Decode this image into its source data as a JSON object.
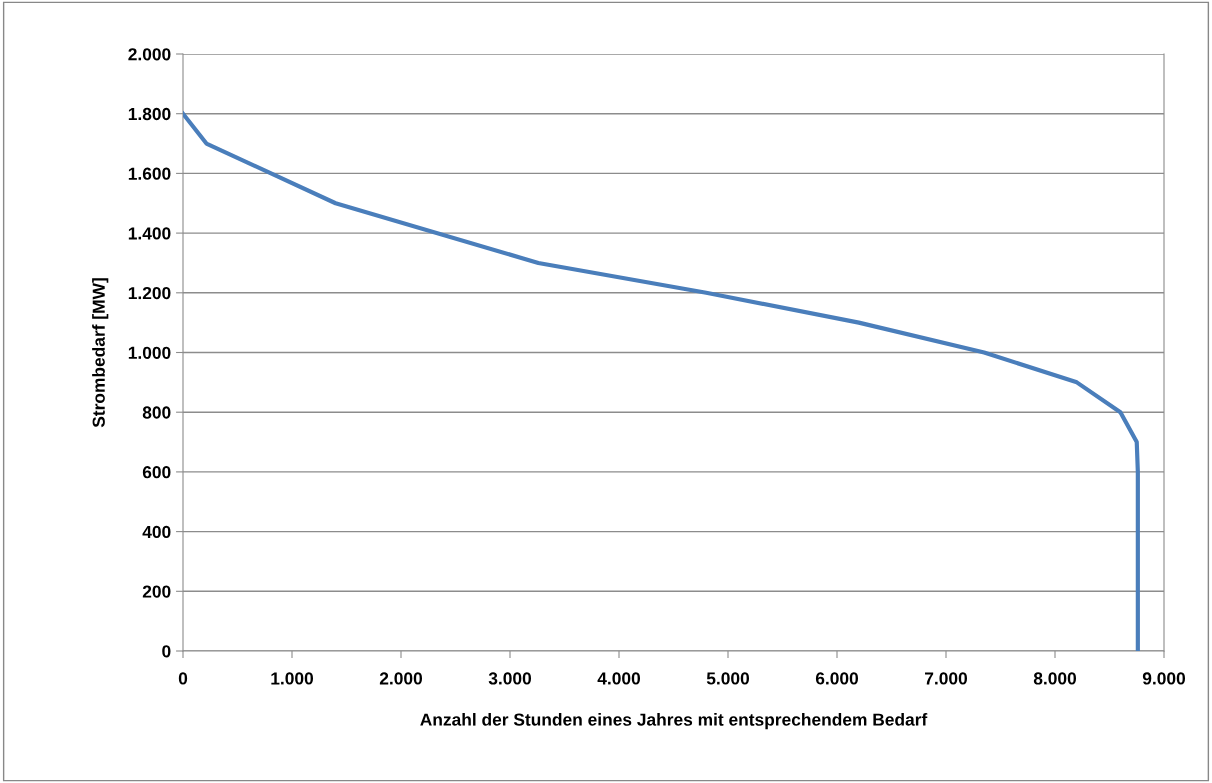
{
  "chart_data": {
    "type": "line",
    "xlabel": "Anzahl der Stunden eines Jahres mit entsprechendem Bedarf",
    "ylabel": "Strombedarf [MW]",
    "series": [
      {
        "color": "#4a7ebb",
        "x": [
          0,
          215,
          1400,
          3260,
          4800,
          6200,
          7350,
          8200,
          8600,
          8750,
          8760,
          8760
        ],
        "values": [
          1800,
          1700,
          1500,
          1300,
          1200,
          1100,
          1000,
          900,
          800,
          700,
          600,
          0
        ]
      }
    ],
    "xlim": [
      0,
      9000
    ],
    "ylim": [
      0,
      2000
    ],
    "xticks": [
      0,
      {
        "value": 1000,
        "label": "1.000"
      },
      {
        "value": 2000,
        "label": "2.000"
      },
      {
        "value": 3000,
        "label": "3.000"
      },
      {
        "value": 4000,
        "label": "4.000"
      },
      {
        "value": 5000,
        "label": "5.000"
      },
      {
        "value": 6000,
        "label": "6.000"
      },
      {
        "value": 7000,
        "label": "7.000"
      },
      {
        "value": 8000,
        "label": "8.000"
      },
      {
        "value": 9000,
        "label": "9.000"
      }
    ],
    "yticks": [
      0,
      200,
      400,
      600,
      800,
      {
        "value": 1000,
        "label": "1.000"
      },
      {
        "value": 1200,
        "label": "1.200"
      },
      {
        "value": 1400,
        "label": "1.400"
      },
      {
        "value": 1600,
        "label": "1.600"
      },
      {
        "value": 1800,
        "label": "1.800"
      },
      {
        "value": 2000,
        "label": "2.000"
      }
    ],
    "grid": "y",
    "marker": "none",
    "line_style": "solid"
  }
}
